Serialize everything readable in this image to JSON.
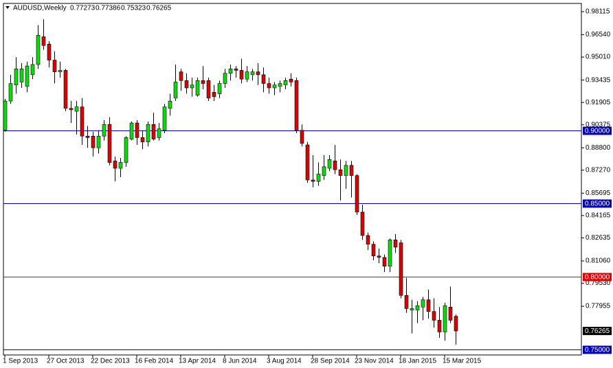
{
  "chart_data": {
    "type": "candlestick",
    "title": "AUDUSD,Weekly",
    "x": [
      "1 Sep 2013",
      null,
      null,
      null,
      null,
      null,
      null,
      null,
      "27 Oct 2013",
      null,
      null,
      null,
      null,
      null,
      null,
      null,
      "22 Dec 2013",
      null,
      null,
      null,
      null,
      null,
      null,
      null,
      "16 Feb 2014",
      null,
      null,
      null,
      null,
      null,
      null,
      null,
      "13 Apr 2014",
      null,
      null,
      null,
      null,
      null,
      null,
      null,
      "8 Jun 2014",
      null,
      null,
      null,
      null,
      null,
      null,
      null,
      "3 Aug 2014",
      null,
      null,
      null,
      null,
      null,
      null,
      null,
      "28 Sep 2014",
      null,
      null,
      null,
      null,
      null,
      null,
      null,
      "23 Nov 2014",
      null,
      null,
      null,
      null,
      null,
      null,
      null,
      "18 Jan 2015",
      null,
      null,
      null,
      null,
      null,
      null,
      null,
      "15 Mar 2015",
      null,
      null
    ],
    "open": [
      0.9,
      0.92,
      0.931,
      0.933,
      0.93,
      0.938,
      0.945,
      0.964,
      0.959,
      0.948,
      0.94,
      0.941,
      0.915,
      0.913,
      0.916,
      0.896,
      0.896,
      0.888,
      0.896,
      0.904,
      0.879,
      0.874,
      0.878,
      0.894,
      0.905,
      0.895,
      0.892,
      0.904,
      0.895,
      0.9,
      0.915,
      0.922,
      0.94,
      0.934,
      0.929,
      0.924,
      0.934,
      0.934,
      0.926,
      0.925,
      0.932,
      0.939,
      0.942,
      0.941,
      0.935,
      0.938,
      0.94,
      0.938,
      0.932,
      0.929,
      0.93,
      0.931,
      0.935,
      0.934,
      0.9,
      0.89,
      0.866,
      0.865,
      0.869,
      0.874,
      0.879,
      0.873,
      0.869,
      0.876,
      0.869,
      0.844,
      0.828,
      0.822,
      0.814,
      0.813,
      0.807,
      0.825,
      0.823,
      0.787,
      0.777,
      0.777,
      0.779,
      0.784,
      0.776,
      0.77,
      0.762,
      0.779,
      0.77273
    ],
    "high": [
      0.9215,
      0.938,
      0.95,
      0.946,
      0.947,
      0.95,
      0.972,
      0.976,
      0.961,
      0.954,
      0.947,
      0.942,
      0.92,
      0.92,
      0.922,
      0.903,
      0.899,
      0.9,
      0.907,
      0.909,
      0.882,
      0.881,
      0.896,
      0.906,
      0.907,
      0.9,
      0.906,
      0.912,
      0.905,
      0.918,
      0.925,
      0.945,
      0.942,
      0.939,
      0.936,
      0.936,
      0.944,
      0.936,
      0.931,
      0.934,
      0.942,
      0.945,
      0.944,
      0.949,
      0.944,
      0.942,
      0.946,
      0.943,
      0.936,
      0.933,
      0.934,
      0.936,
      0.939,
      0.936,
      0.904,
      0.892,
      0.883,
      0.878,
      0.883,
      0.883,
      0.89,
      0.88,
      0.879,
      0.879,
      0.87,
      0.849,
      0.83,
      0.824,
      0.819,
      0.815,
      0.826,
      0.829,
      0.825,
      0.799,
      0.784,
      0.783,
      0.786,
      0.791,
      0.785,
      0.779,
      0.782,
      0.793,
      0.77386
    ],
    "low": [
      0.899,
      0.918,
      0.925,
      0.929,
      0.926,
      0.935,
      0.942,
      0.955,
      0.943,
      0.932,
      0.936,
      0.913,
      0.905,
      0.897,
      0.89,
      0.888,
      0.882,
      0.884,
      0.893,
      0.876,
      0.865,
      0.868,
      0.875,
      0.893,
      0.89,
      0.887,
      0.889,
      0.893,
      0.893,
      0.898,
      0.91,
      0.92,
      0.927,
      0.925,
      0.923,
      0.923,
      0.928,
      0.92,
      0.92,
      0.922,
      0.929,
      0.934,
      0.936,
      0.932,
      0.933,
      0.934,
      0.931,
      0.926,
      0.925,
      0.924,
      0.926,
      0.928,
      0.93,
      0.898,
      0.889,
      0.864,
      0.861,
      0.862,
      0.866,
      0.872,
      0.87,
      0.852,
      0.86,
      0.854,
      0.842,
      0.825,
      0.818,
      0.811,
      0.809,
      0.803,
      0.803,
      0.816,
      0.785,
      0.775,
      0.761,
      0.768,
      0.77,
      0.771,
      0.765,
      0.758,
      0.756,
      0.768,
      0.75323
    ],
    "close": [
      0.92,
      0.932,
      0.942,
      0.942,
      0.944,
      0.945,
      0.965,
      0.958,
      0.948,
      0.94,
      0.941,
      0.915,
      0.914,
      0.916,
      0.896,
      0.895,
      0.888,
      0.896,
      0.904,
      0.878,
      0.874,
      0.878,
      0.895,
      0.905,
      0.895,
      0.892,
      0.904,
      0.894,
      0.901,
      0.916,
      0.92,
      0.933,
      0.934,
      0.929,
      0.931,
      0.934,
      0.932,
      0.922,
      0.923,
      0.932,
      0.939,
      0.942,
      0.941,
      0.935,
      0.94,
      0.94,
      0.938,
      0.932,
      0.929,
      0.931,
      0.932,
      0.934,
      0.933,
      0.9,
      0.891,
      0.866,
      0.865,
      0.87,
      0.875,
      0.88,
      0.873,
      0.869,
      0.876,
      0.869,
      0.844,
      0.828,
      0.822,
      0.814,
      0.813,
      0.807,
      0.825,
      0.82,
      0.787,
      0.778,
      0.778,
      0.78,
      0.784,
      0.776,
      0.77,
      0.762,
      0.78,
      0.77,
      0.76265
    ],
    "ylim": [
      0.74624,
      0.98679
    ],
    "yticks": [
      0.98115,
      {
        "value": 0.9654,
        "label": "0.96540"
      },
      {
        "value": 0.9501,
        "label": "0.95010"
      },
      0.93435,
      0.91905,
      0.90375,
      {
        "value": 0.888,
        "label": "0.88800"
      },
      {
        "value": 0.8727,
        "label": "0.87270"
      },
      0.85695,
      0.84165,
      0.82635,
      {
        "value": 0.8106,
        "label": "0.81060"
      },
      {
        "value": 0.7953,
        "label": "0.79530"
      },
      0.77955
    ],
    "levels": [
      {
        "value": 0.9,
        "label": "0.90000",
        "color": "#0000b4"
      },
      {
        "value": 0.85,
        "label": "0.85000",
        "color": "#0000b4"
      },
      {
        "value": 0.8,
        "label": "0.80000",
        "color": "#e00000"
      },
      {
        "value": 0.75,
        "label": "0.75000",
        "color": "#0000b4"
      }
    ],
    "up_color": "#00e000",
    "down_color": "#dd0000"
  }
}
